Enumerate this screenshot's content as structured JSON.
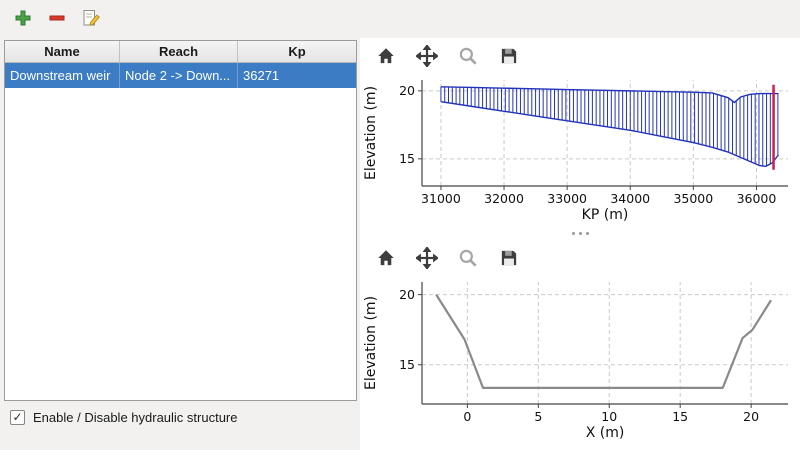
{
  "window": {
    "background": "#f2f1f0"
  },
  "colors": {
    "selection_blue": "#3b7cc4",
    "hatch_blue": "#2233bb",
    "structure_marker_red": "#d02050",
    "cross_section_gray": "#8a8a8a"
  },
  "main_toolbar": {
    "icons": [
      "add-icon",
      "remove-icon",
      "edit-icon"
    ]
  },
  "structures_table": {
    "columns": [
      "Name",
      "Reach",
      "Kp"
    ],
    "rows": [
      {
        "name": "Downstream weir",
        "reach": "Node 2 -> Down...",
        "kp": "36271",
        "selected": true
      }
    ]
  },
  "enable_checkbox": {
    "label": "Enable / Disable hydraulic structure",
    "checked": true,
    "mark": "✓"
  },
  "plot_toolbars": {
    "icons": [
      "home-icon",
      "pan-icon",
      "zoom-icon",
      "save-icon"
    ]
  },
  "chart_data": [
    {
      "type": "line",
      "name": "longitudinal-profile",
      "title": "",
      "xlabel": "KP (m)",
      "ylabel": "Elevation (m)",
      "xlim": [
        30700,
        36500
      ],
      "ylim": [
        13.0,
        20.8
      ],
      "xticks": [
        31000,
        32000,
        33000,
        34000,
        35000,
        36000
      ],
      "yticks": [
        15,
        20
      ],
      "grid": true,
      "hatch_band": {
        "x": [
          31000,
          31500,
          32000,
          32500,
          33000,
          33500,
          34000,
          34500,
          35000,
          35300,
          35550,
          35650,
          35750,
          35900,
          36050,
          36150,
          36250,
          36350
        ],
        "top": [
          20.3,
          20.25,
          20.2,
          20.15,
          20.1,
          20.05,
          20.0,
          19.95,
          19.9,
          19.85,
          19.5,
          19.15,
          19.55,
          19.75,
          19.8,
          19.8,
          19.8,
          19.8
        ],
        "bottom": [
          19.2,
          18.85,
          18.5,
          18.15,
          17.8,
          17.45,
          17.1,
          16.65,
          16.2,
          15.85,
          15.5,
          15.3,
          15.1,
          14.8,
          14.5,
          14.45,
          14.7,
          15.3
        ],
        "line_color": "#2233bb",
        "step": 60
      },
      "vline": {
        "x": 36271,
        "y0": 14.2,
        "y1": 20.45,
        "color": "#d02050"
      }
    },
    {
      "type": "line",
      "name": "cross-section",
      "title": "",
      "xlabel": "X (m)",
      "ylabel": "Elevation (m)",
      "xlim": [
        -3.2,
        22.6
      ],
      "ylim": [
        12.2,
        20.9
      ],
      "xticks": [
        0,
        5,
        10,
        15,
        20
      ],
      "yticks": [
        15,
        20
      ],
      "grid": true,
      "series": [
        {
          "name": "cross-section-profile",
          "color": "#8a8a8a",
          "width": 2.2,
          "x": [
            -2.2,
            -0.2,
            1.1,
            18.0,
            19.4,
            20.1,
            21.4
          ],
          "y": [
            20.0,
            16.8,
            13.35,
            13.35,
            16.9,
            17.5,
            19.6
          ]
        }
      ]
    }
  ]
}
